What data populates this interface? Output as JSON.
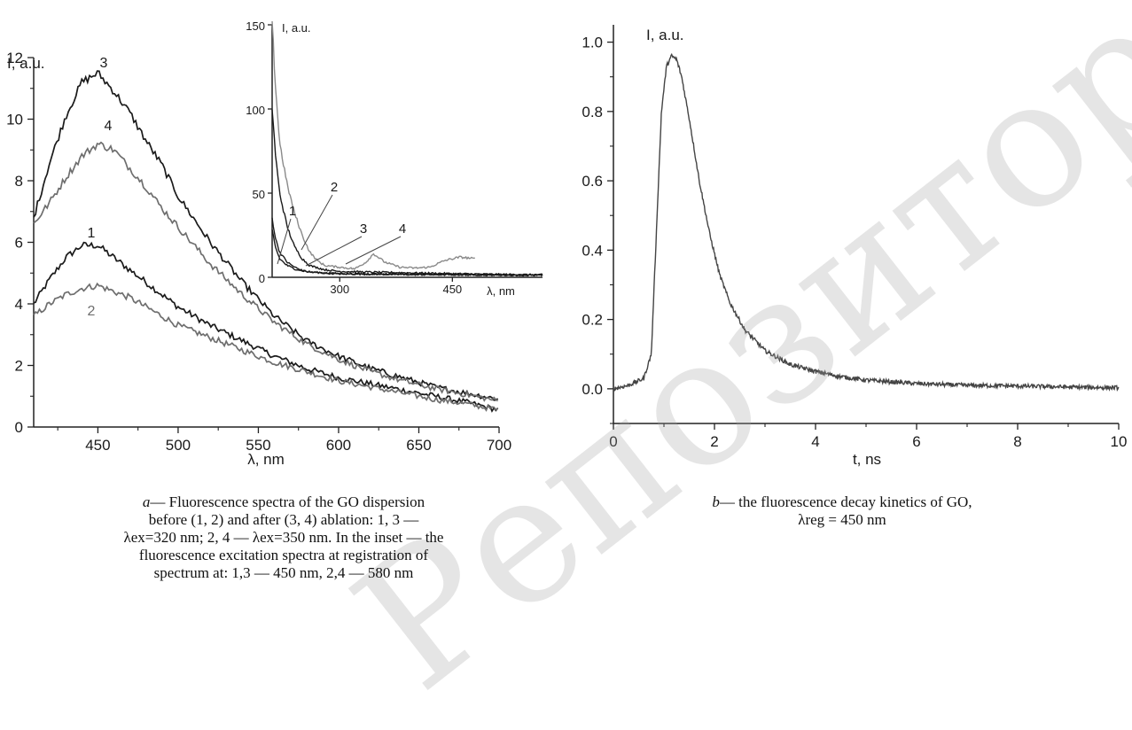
{
  "watermark": "Репозиторий КарГ",
  "chart_data": [
    {
      "id": "a",
      "type": "line",
      "title": "",
      "xlabel": "λ, nm",
      "ylabel": "I, a.u.",
      "xlim": [
        410,
        700
      ],
      "ylim": [
        0,
        12
      ],
      "xticks": [
        450,
        500,
        550,
        600,
        650,
        700
      ],
      "yticks": [
        0,
        2,
        4,
        6,
        8,
        10,
        12
      ],
      "grid": false,
      "series": [
        {
          "name": "1",
          "color": "#1a1a1a",
          "x": [
            410,
            420,
            430,
            440,
            450,
            460,
            470,
            480,
            490,
            500,
            520,
            540,
            560,
            580,
            600,
            620,
            640,
            660,
            680,
            700
          ],
          "y": [
            4.0,
            4.8,
            5.5,
            5.9,
            5.9,
            5.5,
            5.1,
            4.7,
            4.3,
            3.9,
            3.3,
            2.8,
            2.3,
            1.9,
            1.6,
            1.4,
            1.2,
            1.0,
            0.8,
            0.55
          ]
        },
        {
          "name": "2",
          "color": "#6e6e6e",
          "x": [
            410,
            420,
            430,
            440,
            450,
            460,
            470,
            480,
            490,
            500,
            520,
            540,
            560,
            580,
            600,
            620,
            640,
            660,
            680,
            700
          ],
          "y": [
            3.6,
            4.0,
            4.3,
            4.5,
            4.6,
            4.4,
            4.2,
            3.9,
            3.6,
            3.3,
            2.9,
            2.5,
            2.1,
            1.8,
            1.5,
            1.3,
            1.1,
            0.9,
            0.75,
            0.55
          ]
        },
        {
          "name": "3",
          "color": "#1a1a1a",
          "x": [
            410,
            420,
            430,
            440,
            450,
            460,
            470,
            480,
            490,
            500,
            520,
            540,
            560,
            580,
            600,
            620,
            640,
            660,
            680,
            700
          ],
          "y": [
            6.8,
            8.6,
            10.1,
            11.2,
            11.5,
            10.9,
            10.2,
            9.3,
            8.5,
            7.5,
            6.0,
            4.7,
            3.6,
            2.8,
            2.3,
            1.9,
            1.6,
            1.3,
            1.1,
            0.9
          ]
        },
        {
          "name": "4",
          "color": "#6e6e6e",
          "x": [
            410,
            420,
            430,
            440,
            450,
            460,
            470,
            480,
            490,
            500,
            520,
            540,
            560,
            580,
            600,
            620,
            640,
            660,
            680,
            700
          ],
          "y": [
            6.6,
            7.3,
            8.1,
            8.8,
            9.2,
            9.0,
            8.4,
            7.8,
            7.1,
            6.5,
            5.3,
            4.3,
            3.4,
            2.7,
            2.2,
            1.8,
            1.5,
            1.25,
            1.05,
            0.85
          ]
        }
      ]
    },
    {
      "id": "a-inset",
      "type": "line",
      "title": "",
      "xlabel": "λ, nm",
      "ylabel": "I, a.u.",
      "xlim": [
        210,
        570
      ],
      "ylim": [
        0,
        150
      ],
      "xticks": [
        300,
        450
      ],
      "yticks": [
        0,
        50,
        100,
        150
      ],
      "grid": false,
      "series": [
        {
          "name": "1",
          "color": "#1a1a1a",
          "x": [
            210,
            215,
            220,
            230,
            240,
            250,
            260,
            280,
            300,
            350,
            400,
            450,
            500,
            570
          ],
          "y": [
            35,
            22,
            15,
            9,
            6,
            4,
            3,
            2.5,
            2,
            1.8,
            1.6,
            1.5,
            1.4,
            1.3
          ]
        },
        {
          "name": "2",
          "color": "#1a1a1a",
          "x": [
            210,
            215,
            220,
            230,
            240,
            250,
            260,
            280,
            300,
            350,
            400,
            450,
            500,
            570
          ],
          "y": [
            100,
            70,
            50,
            30,
            18,
            11,
            7,
            4.5,
            3.5,
            3.0,
            2.6,
            2.2,
            1.8,
            1.5
          ]
        },
        {
          "name": "3",
          "color": "#1a1a1a",
          "x": [
            210,
            215,
            220,
            230,
            240,
            250,
            260,
            280,
            300,
            350,
            400,
            450,
            500,
            570
          ],
          "y": [
            28,
            17,
            11,
            7,
            5,
            4,
            3.2,
            2.6,
            2.2,
            2.0,
            1.8,
            1.6,
            1.4,
            1.2
          ]
        },
        {
          "name": "4",
          "color": "#8a8a8a",
          "x": [
            210,
            215,
            220,
            230,
            240,
            250,
            260,
            270,
            280,
            300,
            320,
            335,
            345,
            360,
            380,
            400,
            420,
            440,
            460,
            480
          ],
          "y": [
            150,
            110,
            80,
            55,
            38,
            25,
            15,
            10,
            7,
            6,
            5,
            9,
            14,
            9,
            6,
            5.5,
            6,
            10,
            12,
            11
          ]
        }
      ]
    },
    {
      "id": "b",
      "type": "line",
      "title": "",
      "xlabel": "t, ns",
      "ylabel": "I, a.u.",
      "xlim": [
        0,
        10
      ],
      "ylim": [
        -0.1,
        1.05
      ],
      "xticks": [
        0,
        2,
        4,
        6,
        8,
        10
      ],
      "yticks": [
        0.0,
        0.2,
        0.4,
        0.6,
        0.8,
        1.0
      ],
      "grid": false,
      "series": [
        {
          "name": "",
          "color": "#444444",
          "x": [
            0,
            0.3,
            0.6,
            0.75,
            0.85,
            0.95,
            1.05,
            1.15,
            1.25,
            1.35,
            1.5,
            1.7,
            1.9,
            2.1,
            2.3,
            2.6,
            3.0,
            3.5,
            4.0,
            4.5,
            5.0,
            6.0,
            7.0,
            8.0,
            9.0,
            10.0
          ],
          "y": [
            0.0,
            0.01,
            0.03,
            0.1,
            0.45,
            0.8,
            0.93,
            0.96,
            0.95,
            0.9,
            0.78,
            0.6,
            0.45,
            0.33,
            0.25,
            0.17,
            0.11,
            0.07,
            0.05,
            0.035,
            0.025,
            0.015,
            0.01,
            0.008,
            0.005,
            0.003
          ]
        }
      ]
    }
  ],
  "captions": {
    "a": {
      "letter": "a",
      "lines": [
        "— Fluorescence spectra of the GO dispersion",
        "before (1, 2) and after (3, 4) ablation: 1, 3 —",
        "λex=320 nm; 2, 4 — λex=350 nm. In the inset — the",
        "fluorescence excitation spectra at registration of",
        "spectrum at: 1,3 — 450 nm, 2,4 — 580 nm"
      ]
    },
    "b": {
      "letter": "b",
      "lines": [
        "— the fluorescence decay kinetics of GO,",
        "λreg = 450 nm"
      ]
    }
  }
}
